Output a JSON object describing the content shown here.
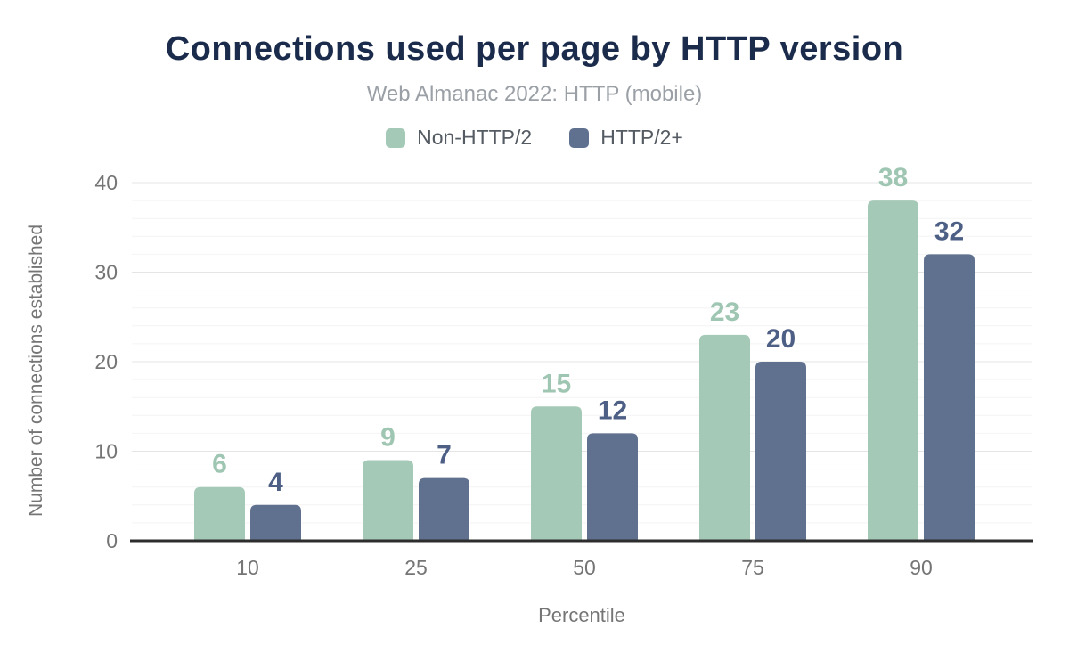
{
  "chart_data": {
    "type": "bar",
    "title": "Connections used per page by HTTP version",
    "subtitle": "Web Almanac 2022: HTTP (mobile)",
    "xlabel": "Percentile",
    "ylabel": "Number of connections established",
    "categories": [
      "10",
      "25",
      "50",
      "75",
      "90"
    ],
    "series": [
      {
        "name": "Non-HTTP/2",
        "values": [
          6,
          9,
          15,
          23,
          38
        ],
        "color": "#a5c9b7",
        "label_color": "#9fc6b2"
      },
      {
        "name": "HTTP/2+",
        "values": [
          4,
          7,
          12,
          20,
          32
        ],
        "color": "#60718f",
        "label_color": "#4d5f85"
      }
    ],
    "ylim": [
      0,
      40
    ],
    "yticks": [
      0,
      10,
      20,
      30,
      40
    ],
    "minor_grid_step": 2,
    "grid": true,
    "legend_position": "top",
    "colors": {
      "title": "#1b2b4b",
      "subtitle": "#9aa0a6",
      "legend_text": "#555b63",
      "tick_text": "#757575",
      "axis_label_text": "#757575",
      "axis_line": "#2d2d2d",
      "major_grid": "#e5e5e5",
      "minor_grid": "#f4f4f4",
      "background": "#ffffff"
    }
  }
}
